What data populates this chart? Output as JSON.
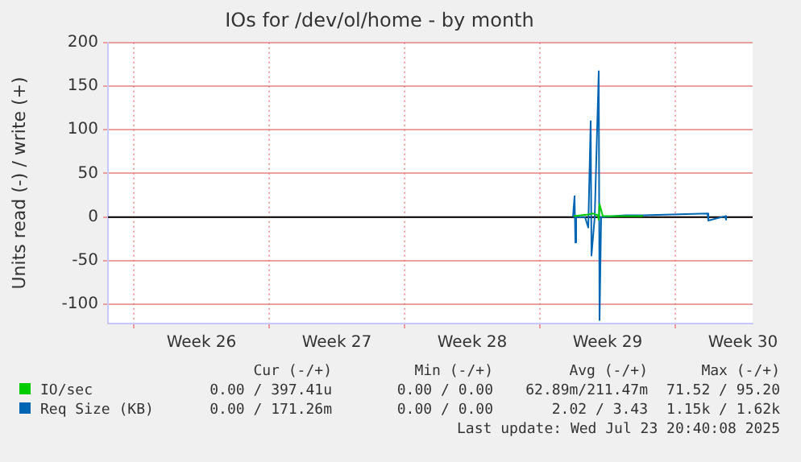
{
  "chart_data": {
    "type": "line",
    "title": "IOs for /dev/ol/home - by month",
    "ylabel": "Units read (-) / write (+)",
    "xlim": [
      "2025-06-21T16:00",
      "2025-07-25T00:00"
    ],
    "xticks": [
      {
        "value": "2025-06-23",
        "label": null
      },
      {
        "value": "2025-06-26T12:00",
        "label": "Week 26"
      },
      {
        "value": "2025-06-30",
        "label": null
      },
      {
        "value": "2025-07-03T12:00",
        "label": "Week 27"
      },
      {
        "value": "2025-07-07",
        "label": null
      },
      {
        "value": "2025-07-10T12:00",
        "label": "Week 28"
      },
      {
        "value": "2025-07-14",
        "label": null
      },
      {
        "value": "2025-07-17T12:00",
        "label": "Week 29"
      },
      {
        "value": "2025-07-21",
        "label": null
      },
      {
        "value": "2025-07-24T12:00",
        "label": "Week 30"
      }
    ],
    "ylim": [
      -122,
      200
    ],
    "yticks": [
      -100,
      -50,
      0,
      50,
      100,
      150,
      200
    ],
    "grid": true,
    "legend": "bottom",
    "ref_lines": [
      {
        "axis": "y",
        "value": 0,
        "color": "#000000"
      }
    ],
    "series": [
      {
        "name": "IO/sec",
        "color": "#00cc00",
        "x": [
          "2025-07-15T18:00",
          "2025-07-16T12:00",
          "2025-07-16T18:00",
          "2025-07-17T00:00",
          "2025-07-17T01:00",
          "2025-07-17T02:00",
          "2025-07-17T06:00",
          "2025-07-18T10:00",
          "2025-07-19T08:00"
        ],
        "values": [
          1,
          3,
          4,
          2,
          -3,
          15,
          1,
          1,
          1
        ]
      },
      {
        "name": "Req Size (KB)",
        "color": "#0066b3",
        "x": [
          "2025-07-15T17:00",
          "2025-07-15T19:00",
          "2025-07-15T20:00",
          "2025-07-15T21:00",
          "2025-07-16T08:00",
          "2025-07-16T12:00",
          "2025-07-16T15:00",
          "2025-07-16T16:00",
          "2025-07-16T20:00",
          "2025-07-17T01:00",
          "2025-07-17T02:00",
          "2025-07-17T04:00",
          "2025-07-18T10:00",
          "2025-07-19T08:00",
          "2025-07-22T16:00",
          "2025-07-22T17:00",
          "2025-07-23T14:00",
          "2025-07-23T15:00"
        ],
        "values": [
          0,
          24,
          -29,
          0,
          0,
          -12,
          110,
          -44,
          0,
          167,
          -118,
          0,
          2,
          2,
          4,
          -4,
          1,
          -3
        ]
      }
    ],
    "annotations": [
      "Cur (-/+)",
      "Min (-/+)",
      "Avg (-/+)",
      "Max (-/+)",
      "0.00 / 397.41u",
      "0.00 / 0.00",
      "62.89m/211.47m",
      "71.52 / 95.20",
      "0.00 / 171.26m",
      "0.00 / 0.00",
      "2.02 / 3.43",
      "1.15k / 1.62k",
      "Last update: Wed Jul 23 20:40:08 2025"
    ]
  }
}
